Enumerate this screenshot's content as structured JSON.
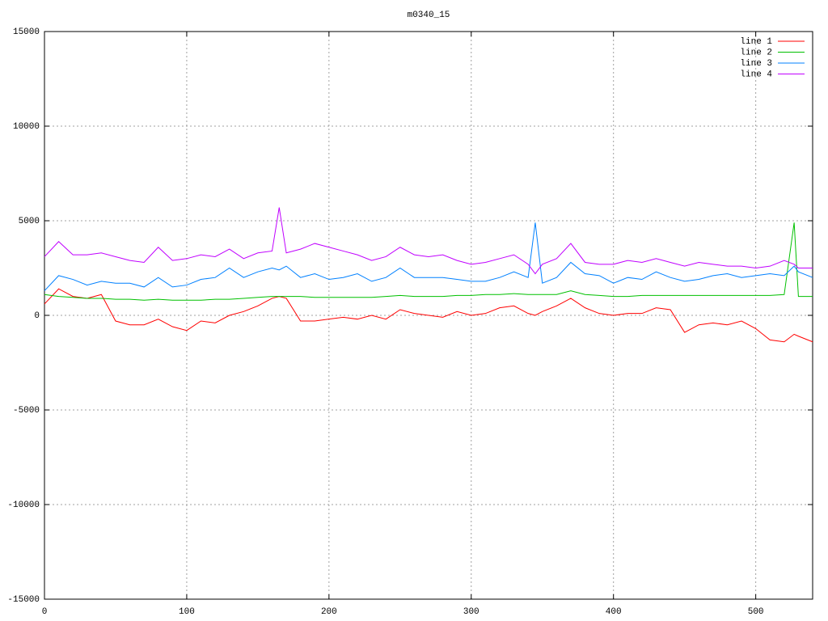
{
  "chart_data": {
    "type": "line",
    "title": "m0340_15",
    "x": [
      0,
      10,
      20,
      30,
      40,
      50,
      60,
      70,
      80,
      90,
      100,
      110,
      120,
      130,
      140,
      150,
      160,
      165,
      170,
      180,
      190,
      200,
      210,
      220,
      230,
      240,
      250,
      260,
      270,
      280,
      290,
      300,
      310,
      320,
      330,
      340,
      345,
      350,
      360,
      370,
      380,
      390,
      400,
      410,
      420,
      430,
      440,
      450,
      460,
      470,
      480,
      490,
      500,
      510,
      520,
      527,
      530,
      540
    ],
    "series": [
      {
        "name": "line 1",
        "color": "#ff0000",
        "values": [
          600,
          1400,
          1000,
          900,
          1100,
          -300,
          -500,
          -500,
          -200,
          -600,
          -800,
          -300,
          -400,
          0,
          200,
          500,
          900,
          1000,
          900,
          -300,
          -300,
          -200,
          -100,
          -200,
          0,
          -200,
          300,
          100,
          0,
          -100,
          200,
          0,
          100,
          400,
          500,
          100,
          0,
          200,
          500,
          900,
          400,
          100,
          0,
          100,
          100,
          400,
          300,
          -900,
          -500,
          -400,
          -500,
          -300,
          -700,
          -1300,
          -1400,
          -1000,
          -1100,
          -1400
        ]
      },
      {
        "name": "line 2",
        "color": "#00c000",
        "values": [
          1100,
          1000,
          950,
          900,
          900,
          850,
          850,
          800,
          850,
          800,
          800,
          800,
          850,
          850,
          900,
          950,
          1000,
          1000,
          1000,
          1000,
          950,
          950,
          950,
          950,
          950,
          1000,
          1050,
          1000,
          1000,
          1000,
          1050,
          1050,
          1100,
          1100,
          1150,
          1100,
          1100,
          1100,
          1100,
          1300,
          1100,
          1050,
          1000,
          1000,
          1050,
          1050,
          1050,
          1050,
          1050,
          1050,
          1050,
          1050,
          1050,
          1050,
          1100,
          4900,
          1000,
          1000
        ]
      },
      {
        "name": "line 3",
        "color": "#0080ff",
        "values": [
          1300,
          2100,
          1900,
          1600,
          1800,
          1700,
          1700,
          1500,
          2000,
          1500,
          1600,
          1900,
          2000,
          2500,
          2000,
          2300,
          2500,
          2400,
          2600,
          2000,
          2200,
          1900,
          2000,
          2200,
          1800,
          2000,
          2500,
          2000,
          2000,
          2000,
          1900,
          1800,
          1800,
          2000,
          2300,
          2000,
          4900,
          1700,
          2000,
          2800,
          2200,
          2100,
          1700,
          2000,
          1900,
          2300,
          2000,
          1800,
          1900,
          2100,
          2200,
          2000,
          2100,
          2200,
          2100,
          2600,
          2300,
          2000
        ]
      },
      {
        "name": "line 4",
        "color": "#c000ff",
        "values": [
          3100,
          3900,
          3200,
          3200,
          3300,
          3100,
          2900,
          2800,
          3600,
          2900,
          3000,
          3200,
          3100,
          3500,
          3000,
          3300,
          3400,
          5700,
          3300,
          3500,
          3800,
          3600,
          3400,
          3200,
          2900,
          3100,
          3600,
          3200,
          3100,
          3200,
          2900,
          2700,
          2800,
          3000,
          3200,
          2700,
          2200,
          2700,
          3000,
          3800,
          2800,
          2700,
          2700,
          2900,
          2800,
          3000,
          2800,
          2600,
          2800,
          2700,
          2600,
          2600,
          2500,
          2600,
          2900,
          2700,
          2500,
          2500
        ]
      }
    ],
    "xlim": [
      0,
      540
    ],
    "xticks": [
      0,
      100,
      200,
      300,
      400,
      500
    ],
    "ylim": [
      -15000,
      15000
    ],
    "yticks": [
      -15000,
      -10000,
      -5000,
      0,
      5000,
      10000,
      15000
    ],
    "grid": true,
    "legend": "top-right"
  }
}
